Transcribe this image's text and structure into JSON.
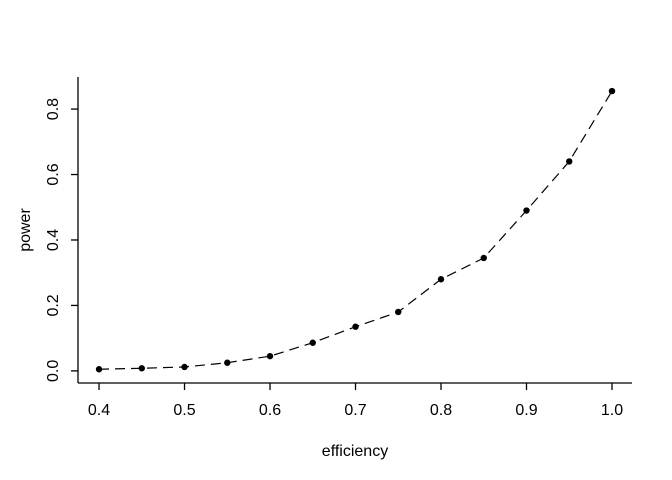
{
  "figure": {
    "background_color": "#ffffff",
    "foreground_color": "#000000"
  },
  "chart_data": {
    "type": "line",
    "title": "",
    "xlabel": "efficiency",
    "ylabel": "power",
    "series": [
      {
        "name": "power-vs-efficiency",
        "x": [
          0.4,
          0.45,
          0.5,
          0.55,
          0.6,
          0.65,
          0.7,
          0.75,
          0.8,
          0.85,
          0.9,
          0.95,
          1.0
        ],
        "y": [
          0.005,
          0.008,
          0.012,
          0.025,
          0.045,
          0.086,
          0.135,
          0.18,
          0.28,
          0.345,
          0.49,
          0.64,
          0.855
        ],
        "line_style": "dashed",
        "marker": "filled-circle",
        "color": "#000000"
      }
    ],
    "xticks": [
      0.4,
      0.5,
      0.6,
      0.7,
      0.8,
      0.9,
      1.0
    ],
    "xtick_labels": [
      "0.4",
      "0.5",
      "0.6",
      "0.7",
      "0.8",
      "0.9",
      "1.0"
    ],
    "yticks": [
      0.0,
      0.2,
      0.4,
      0.6,
      0.8
    ],
    "ytick_labels": [
      "0.0",
      "0.2",
      "0.4",
      "0.6",
      "0.8"
    ],
    "xlim": [
      0.3754,
      1.0234
    ],
    "ylim": [
      -0.037,
      0.898
    ],
    "grid": false,
    "legend_position": "none"
  }
}
